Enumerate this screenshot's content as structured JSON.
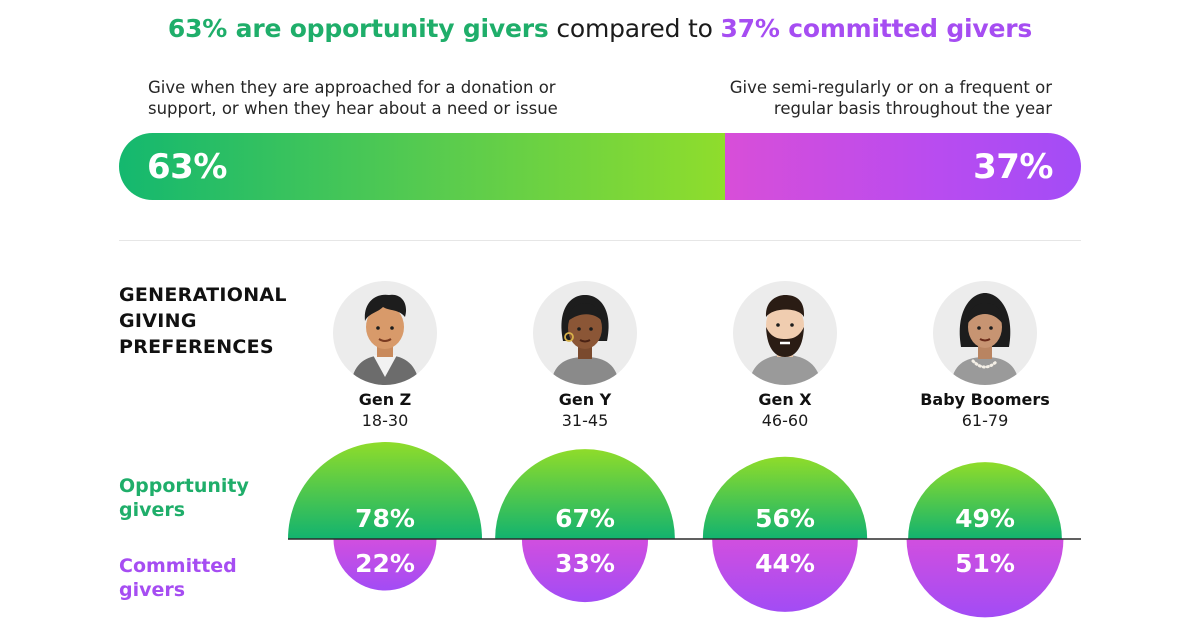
{
  "headline": {
    "part1": "63% are opportunity givers",
    "part2": " compared to ",
    "part3": "37% committed givers"
  },
  "descriptions": {
    "left": "Give when they are approached for a donation or support, or when they hear about a need or issue",
    "right": "Give semi-regularly or on a frequent or regular basis throughout the year"
  },
  "overall": {
    "opportunity_label": "63%",
    "opportunity_share": 63,
    "committed_label": "37%",
    "committed_share": 37
  },
  "section_title": "GENERATIONAL GIVING PREFERENCES",
  "row_labels": {
    "opportunity": "Opportunity givers",
    "committed": "Committed givers"
  },
  "colors": {
    "green": "#1fae6a",
    "purple": "#a64df2",
    "divider": "#2b2b2b"
  },
  "generations": [
    {
      "name": "Gen Z",
      "ages": "18-30",
      "avatar": "young-man-avatar-icon"
    },
    {
      "name": "Gen Y",
      "ages": "31-45",
      "avatar": "woman-avatar-icon"
    },
    {
      "name": "Gen X",
      "ages": "46-60",
      "avatar": "bearded-man-avatar-icon"
    },
    {
      "name": "Baby Boomers",
      "ages": "61-79",
      "avatar": "older-woman-avatar-icon"
    }
  ],
  "chart_data": {
    "type": "bar",
    "title": "GENERATIONAL GIVING PREFERENCES",
    "categories": [
      "Gen Z",
      "Gen Y",
      "Gen X",
      "Baby Boomers"
    ],
    "series": [
      {
        "name": "Opportunity givers",
        "values": [
          78,
          67,
          56,
          49
        ],
        "labels": [
          "78%",
          "67%",
          "56%",
          "49%"
        ]
      },
      {
        "name": "Committed givers",
        "values": [
          22,
          33,
          44,
          51
        ],
        "labels": [
          "22%",
          "33%",
          "44%",
          "51%"
        ]
      }
    ]
  }
}
